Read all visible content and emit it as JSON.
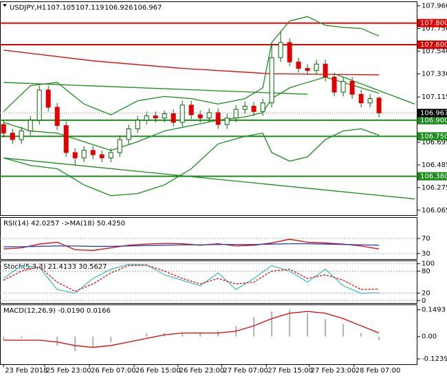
{
  "chart_data": [
    {
      "type": "candlestick",
      "title": "USDJPY,H1",
      "quote": [
        107.105,
        107.119,
        106.926,
        106.967
      ],
      "xlim": [
        -0.4,
        46.3
      ],
      "ylim": [
        106.02,
        107.995
      ],
      "yticks": [
        {
          "value": 107.96,
          "label": "107.960"
        },
        {
          "value": 107.75,
          "label": "107.750"
        },
        {
          "value": 107.54,
          "label": "107.540"
        },
        {
          "value": 107.33,
          "label": "107.330"
        },
        107.115,
        106.905,
        {
          "value": 106.695,
          "label": "106.695"
        },
        106.485,
        106.275,
        106.065
      ],
      "up_color": "#ffffff",
      "down_color": "#e00000",
      "wick_color": "#006400",
      "open": [
        106.86,
        106.78,
        106.72,
        106.8,
        106.9,
        107.18,
        107.02,
        106.85,
        106.6,
        106.55,
        106.62,
        106.58,
        106.55,
        106.6,
        106.72,
        106.82,
        106.9,
        106.94,
        106.92,
        106.96,
        106.88,
        107.04,
        106.95,
        106.92,
        106.97,
        106.86,
        106.92,
        107.0,
        107.03,
        106.98,
        107.06,
        107.48,
        107.62,
        107.44,
        107.38,
        107.36,
        107.42,
        107.3,
        107.16,
        107.26,
        107.14,
        107.06,
        107.105
      ],
      "high": [
        106.9,
        106.82,
        106.84,
        106.94,
        107.22,
        107.22,
        107.06,
        106.89,
        106.64,
        106.66,
        106.66,
        106.62,
        106.64,
        106.76,
        106.86,
        106.94,
        106.98,
        106.98,
        106.99,
        107.0,
        107.08,
        107.08,
        106.99,
        107.01,
        107.01,
        106.96,
        107.04,
        107.07,
        107.07,
        107.1,
        107.62,
        107.72,
        107.66,
        107.48,
        107.42,
        107.46,
        107.46,
        107.34,
        107.3,
        107.3,
        107.18,
        107.14,
        107.119
      ],
      "low": [
        106.74,
        106.68,
        106.68,
        106.76,
        106.86,
        106.98,
        106.81,
        106.56,
        106.48,
        106.51,
        106.54,
        106.51,
        106.51,
        106.56,
        106.68,
        106.78,
        106.86,
        106.88,
        106.88,
        106.84,
        106.84,
        106.91,
        106.88,
        106.88,
        106.82,
        106.82,
        106.88,
        106.96,
        106.94,
        106.94,
        107.02,
        107.44,
        107.4,
        107.34,
        107.32,
        107.32,
        107.26,
        107.12,
        107.12,
        107.1,
        107.02,
        107.02,
        106.926
      ],
      "close": [
        106.78,
        106.72,
        106.8,
        106.9,
        107.18,
        107.02,
        106.85,
        106.6,
        106.55,
        106.62,
        106.58,
        106.55,
        106.6,
        106.72,
        106.82,
        106.9,
        106.94,
        106.92,
        106.96,
        106.88,
        107.04,
        106.95,
        106.92,
        106.97,
        106.86,
        106.92,
        107.0,
        107.03,
        106.98,
        107.06,
        107.48,
        107.62,
        107.44,
        107.38,
        107.36,
        107.42,
        107.3,
        107.16,
        107.26,
        107.14,
        107.06,
        107.1,
        106.967
      ],
      "lines": [
        {
          "color": "#1a8c1a",
          "x": [
            0,
            3,
            6,
            9,
            12,
            15,
            18,
            21,
            24,
            27,
            29,
            30,
            32,
            34,
            36,
            38,
            40,
            42
          ],
          "values": [
            106.98,
            107.22,
            107.25,
            107.05,
            106.95,
            107.08,
            107.12,
            107.1,
            107.05,
            107.1,
            107.2,
            107.62,
            107.82,
            107.86,
            107.78,
            107.76,
            107.75,
            107.68
          ]
        },
        {
          "color": "#1a8c1a",
          "x": [
            0,
            3,
            6,
            9,
            12,
            15,
            18,
            21,
            24,
            27,
            29,
            30,
            32,
            34,
            36,
            38,
            40,
            42
          ],
          "values": [
            106.55,
            106.48,
            106.45,
            106.3,
            106.2,
            106.22,
            106.3,
            106.45,
            106.68,
            106.75,
            106.78,
            106.6,
            106.52,
            106.56,
            106.72,
            106.8,
            106.82,
            106.76
          ]
        },
        {
          "color": "#1a8c1a",
          "x": [
            0,
            3,
            6,
            9,
            12,
            15,
            18,
            21,
            24,
            27,
            29,
            30,
            32,
            34,
            36,
            38,
            40,
            42
          ],
          "values": [
            106.88,
            106.8,
            106.78,
            106.7,
            106.62,
            106.7,
            106.8,
            106.85,
            106.9,
            106.93,
            106.97,
            107.1,
            107.2,
            107.25,
            107.3,
            107.25,
            107.2,
            107.15
          ]
        },
        {
          "color": "#e00000",
          "x": [
            0,
            10,
            20,
            30,
            42
          ],
          "values": [
            107.55,
            107.45,
            107.38,
            107.33,
            107.32
          ]
        },
        {
          "color": "#1a8c1a",
          "x": [
            0,
            34
          ],
          "values": [
            107.25,
            107.14
          ]
        },
        {
          "color": "#1a8c1a",
          "x": [
            0,
            46
          ],
          "values": [
            106.55,
            106.17
          ]
        },
        {
          "color": "#1a8c1a",
          "x": [
            37,
            46
          ],
          "values": [
            107.33,
            107.05
          ]
        }
      ],
      "levels": [
        {
          "value": 107.8,
          "label": "107.800",
          "color": "#e00000"
        },
        {
          "value": 107.6,
          "label": "107.600",
          "color": "#e00000"
        },
        {
          "value": 106.9,
          "label": "106.900",
          "color": "#1a8c1a"
        },
        {
          "value": 106.75,
          "label": "106.750",
          "color": "#1a8c1a"
        },
        {
          "value": 106.38,
          "label": "106.380",
          "color": "#1a8c1a"
        }
      ],
      "last": {
        "value": 106.967,
        "label": "106.967"
      }
    },
    {
      "type": "line",
      "title": "RSI(14) 42.0257  ->MA(18) 50.4250",
      "xlim": [
        -0.4,
        46.3
      ],
      "ylim": [
        15,
        125
      ],
      "yticks": [
        70,
        30
      ],
      "x": [
        0,
        2,
        4,
        6,
        8,
        10,
        12,
        14,
        16,
        18,
        20,
        22,
        24,
        26,
        28,
        30,
        32,
        34,
        36,
        38,
        40,
        42
      ],
      "series": [
        {
          "color": "#e00000",
          "values": [
            42,
            45,
            55,
            60,
            40,
            38,
            45,
            52,
            55,
            57,
            56,
            52,
            56,
            50,
            52,
            58,
            68,
            60,
            58,
            55,
            50,
            42
          ]
        },
        {
          "color": "#1f3fbf",
          "values": [
            48,
            48,
            49,
            50,
            50,
            49,
            49,
            50,
            51,
            52,
            53,
            53,
            54,
            54,
            54,
            55,
            56,
            56,
            55,
            54,
            53,
            52
          ]
        }
      ]
    },
    {
      "type": "line",
      "title": "Stoch(5,3,3) 21.4133 30.5627",
      "xlim": [
        -0.4,
        46.3
      ],
      "ylim": [
        -7,
        107
      ],
      "yticks": [
        100,
        80,
        20,
        0
      ],
      "x": [
        0,
        2,
        4,
        6,
        8,
        10,
        12,
        14,
        16,
        18,
        20,
        22,
        24,
        26,
        28,
        30,
        32,
        34,
        36,
        38,
        40,
        42
      ],
      "series": [
        {
          "color": "#3fbfbf",
          "values": [
            60,
            95,
            90,
            30,
            20,
            60,
            85,
            98,
            97,
            70,
            55,
            40,
            75,
            30,
            60,
            95,
            80,
            50,
            85,
            40,
            20,
            21
          ]
        },
        {
          "color": "#e00000",
          "dashed": true,
          "values": [
            55,
            80,
            92,
            50,
            25,
            45,
            75,
            95,
            96,
            80,
            60,
            45,
            60,
            45,
            50,
            80,
            85,
            60,
            70,
            55,
            30,
            31
          ]
        }
      ]
    },
    {
      "type": "bar",
      "title": "MACD(12,26,9) -0.0190 0.0166",
      "xlim": [
        -0.4,
        46.3
      ],
      "ylim": [
        -0.154,
        0.175
      ],
      "yticks": [
        0.1493,
        {
          "value": 0,
          "label": "0.00"
        },
        -0.1239
      ],
      "xticks": [
        {
          "value": 0,
          "label": "23 Feb 2018"
        },
        {
          "value": 4.6,
          "label": "25 Feb 23:00"
        },
        {
          "value": 9.6,
          "label": "26 Feb 07:00"
        },
        {
          "value": 14.6,
          "label": "26 Feb 15:00"
        },
        {
          "value": 19.5,
          "label": "26 Feb 23:00"
        },
        {
          "value": 24.4,
          "label": "27 Feb 07:00"
        },
        {
          "value": 29.4,
          "label": "27 Feb 15:00"
        },
        {
          "value": 34.2,
          "label": "27 Feb 23:00"
        },
        {
          "value": 39.2,
          "label": "28 Feb 07:00"
        }
      ],
      "x": [
        0,
        2,
        4,
        6,
        8,
        10,
        12,
        14,
        16,
        18,
        20,
        22,
        24,
        26,
        28,
        30,
        32,
        34,
        36,
        38,
        40,
        42
      ],
      "series": [
        {
          "type": "bar",
          "color": "#b0b0b0",
          "values": [
            -0.02,
            -0.01,
            0,
            -0.05,
            -0.08,
            -0.06,
            -0.03,
            0,
            0.02,
            0.02,
            0.02,
            0.02,
            0.03,
            0.06,
            0.11,
            0.14,
            0.15,
            0.13,
            0.1,
            0.07,
            0.02,
            -0.02
          ]
        },
        {
          "type": "line",
          "color": "#e00000",
          "values": [
            -0.02,
            -0.02,
            -0.02,
            -0.03,
            -0.05,
            -0.06,
            -0.05,
            -0.03,
            -0.01,
            0.01,
            0.02,
            0.02,
            0.02,
            0.03,
            0.06,
            0.1,
            0.13,
            0.14,
            0.13,
            0.1,
            0.06,
            0.02
          ]
        }
      ]
    }
  ]
}
